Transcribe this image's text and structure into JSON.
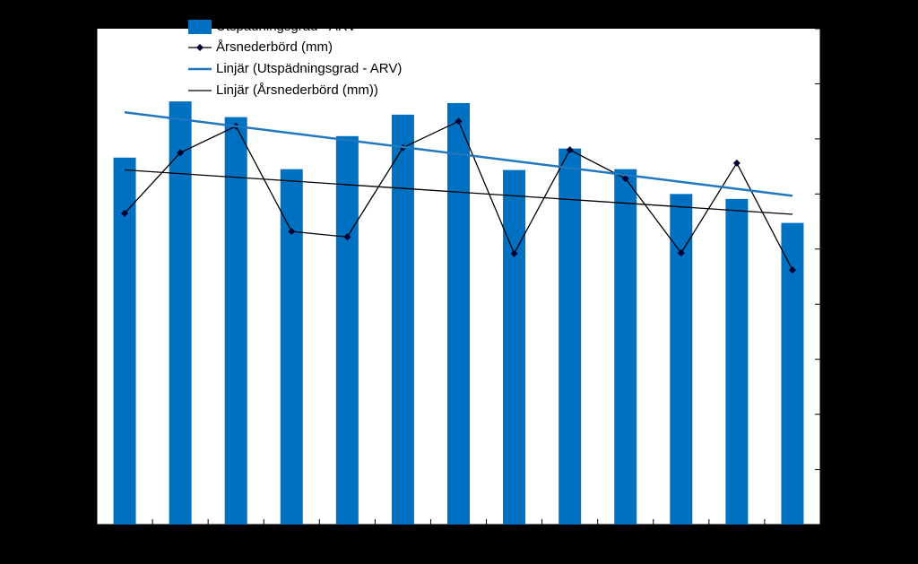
{
  "chart_data": {
    "type": "bar",
    "categories": [
      null,
      null,
      null,
      null,
      null,
      null,
      null,
      null,
      null,
      null,
      null,
      null,
      null
    ],
    "series": [
      {
        "name": "Utspädningsgrad - ARV",
        "color": "#0070c0",
        "type": "bar",
        "values": [
          4.44,
          5.12,
          4.93,
          4.3,
          4.7,
          4.96,
          5.1,
          4.29,
          4.55,
          4.3,
          4.0,
          3.94,
          3.65
        ]
      },
      {
        "name": "Årsnederbörd (mm)",
        "color": "#000033",
        "type": "line",
        "axis": "y2",
        "values": [
          5.65,
          6.75,
          7.23,
          5.32,
          5.22,
          6.84,
          7.32,
          4.92,
          6.8,
          6.28,
          4.93,
          6.56,
          4.62
        ]
      }
    ],
    "trendlines": [
      {
        "name": "Linjär (Utspädningsgrad - ARV)",
        "color": "#1f78c1",
        "of": 0
      },
      {
        "name": "Linjär (Årsnederbörd (mm))",
        "color": "#000000",
        "of": 1
      }
    ],
    "ylim": [
      0,
      6
    ],
    "yticks": [
      0,
      1,
      2,
      3,
      4,
      5,
      6
    ],
    "y2lim": [
      0,
      9
    ],
    "y2ticks": [
      0,
      1,
      2,
      3,
      4,
      5,
      6,
      7,
      8,
      9
    ]
  }
}
